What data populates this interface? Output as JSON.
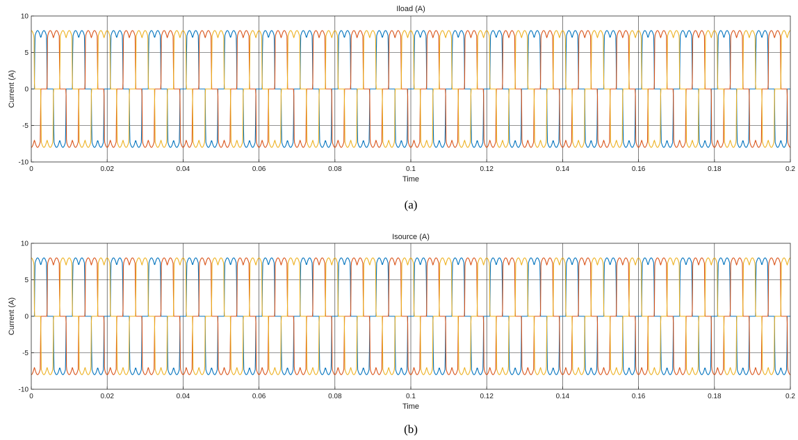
{
  "chart_data": [
    {
      "type": "line",
      "panel_label": "(a)",
      "title": "Iload (A)",
      "xlabel": "Time",
      "ylabel": "Current (A)",
      "xlim": [
        0,
        0.2
      ],
      "ylim": [
        -10,
        10
      ],
      "x_ticks": [
        0,
        0.02,
        0.04,
        0.06,
        0.08,
        0.1,
        0.12,
        0.14,
        0.16,
        0.18,
        0.2
      ],
      "x_tick_labels": [
        "0",
        "0.02",
        "0.04",
        "0.06",
        "0.08",
        "0.1",
        "0.12",
        "0.14",
        "0.16",
        "0.18",
        "0.2"
      ],
      "y_ticks": [
        -10,
        -5,
        0,
        5,
        10
      ],
      "y_tick_labels": [
        "-10",
        "-5",
        "0",
        "5",
        "10"
      ],
      "grid": true,
      "waveform": {
        "shape": "six-step quasi-square with double-hump ripple",
        "fundamental_period_s": 0.01,
        "plateau_min_A": 7.0,
        "plateau_max_A": 8.0,
        "phase_offset_deg": 0
      },
      "series": [
        {
          "color": "#0072BD",
          "phase_deg": 0
        },
        {
          "color": "#D95319",
          "phase_deg": -120
        },
        {
          "color": "#EDB120",
          "phase_deg": 120
        }
      ]
    },
    {
      "type": "line",
      "panel_label": "(b)",
      "title": "Isource (A)",
      "xlabel": "Time",
      "ylabel": "Current (A)",
      "xlim": [
        0,
        0.2
      ],
      "ylim": [
        -10,
        10
      ],
      "x_ticks": [
        0,
        0.02,
        0.04,
        0.06,
        0.08,
        0.1,
        0.12,
        0.14,
        0.16,
        0.18,
        0.2
      ],
      "x_tick_labels": [
        "0",
        "0.02",
        "0.04",
        "0.06",
        "0.08",
        "0.1",
        "0.12",
        "0.14",
        "0.16",
        "0.18",
        "0.2"
      ],
      "y_ticks": [
        -10,
        -5,
        0,
        5,
        10
      ],
      "y_tick_labels": [
        "-10",
        "-5",
        "0",
        "5",
        "10"
      ],
      "grid": true,
      "waveform": {
        "shape": "six-step quasi-square with double-hump ripple",
        "fundamental_period_s": 0.01,
        "plateau_min_A": 7.0,
        "plateau_max_A": 8.0,
        "phase_offset_deg": 0
      },
      "series": [
        {
          "color": "#0072BD",
          "phase_deg": 0
        },
        {
          "color": "#D95319",
          "phase_deg": -120
        },
        {
          "color": "#EDB120",
          "phase_deg": 120
        }
      ]
    }
  ]
}
